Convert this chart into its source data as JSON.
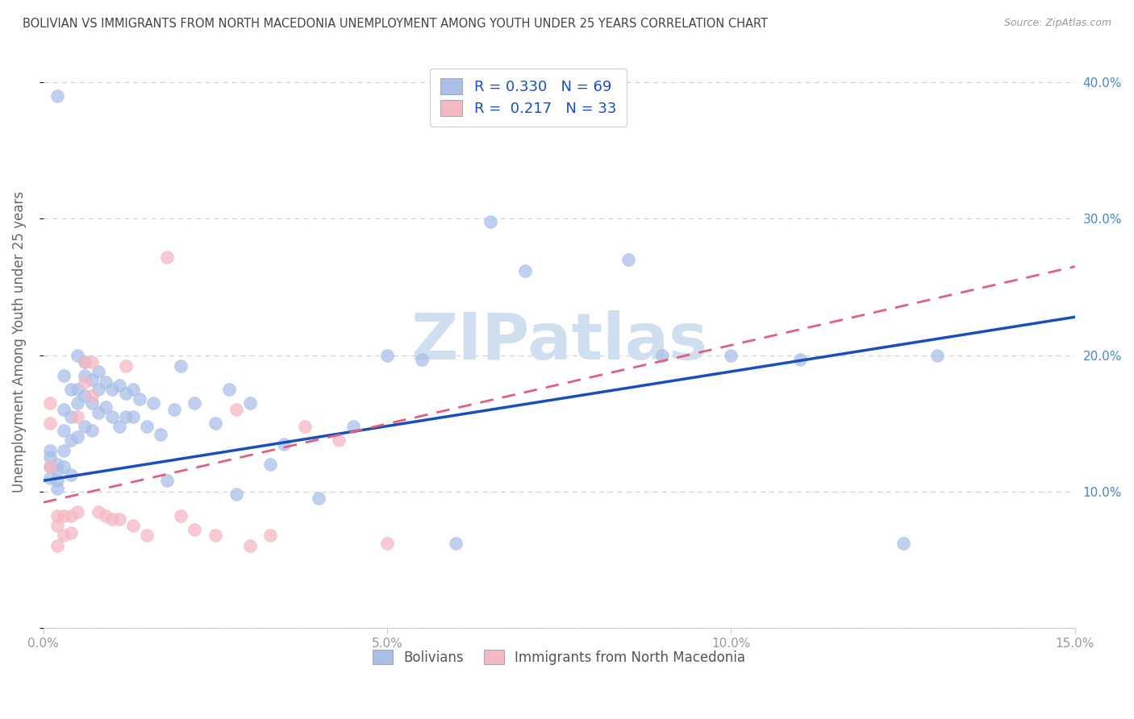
{
  "title": "BOLIVIAN VS IMMIGRANTS FROM NORTH MACEDONIA UNEMPLOYMENT AMONG YOUTH UNDER 25 YEARS CORRELATION CHART",
  "source": "Source: ZipAtlas.com",
  "ylabel": "Unemployment Among Youth under 25 years",
  "xlim": [
    0.0,
    0.15
  ],
  "ylim": [
    0.0,
    0.42
  ],
  "yticks": [
    0.0,
    0.1,
    0.2,
    0.3,
    0.4
  ],
  "xticks": [
    0.0,
    0.05,
    0.1,
    0.15
  ],
  "bolivians_R": 0.33,
  "bolivians_N": 69,
  "macedonia_R": 0.217,
  "macedonia_N": 33,
  "blue_dot_color": "#AABFE8",
  "pink_dot_color": "#F5B8C4",
  "blue_line_color": "#1A4FBB",
  "pink_line_color": "#E06080",
  "watermark": "ZIPatlas",
  "watermark_color": "#D0DFF0",
  "background_color": "#FFFFFF",
  "grid_color": "#CCCCCC",
  "title_color": "#444444",
  "right_ytick_color": "#4488CC",
  "tick_color": "#999999",
  "blue_trend_x0": 0.0,
  "blue_trend_y0": 0.108,
  "blue_trend_x1": 0.15,
  "blue_trend_y1": 0.228,
  "pink_trend_x0": 0.0,
  "pink_trend_y0": 0.092,
  "pink_trend_x1": 0.15,
  "pink_trend_y1": 0.265,
  "bolivians_x": [
    0.001,
    0.001,
    0.001,
    0.001,
    0.002,
    0.002,
    0.002,
    0.002,
    0.002,
    0.003,
    0.003,
    0.003,
    0.003,
    0.003,
    0.004,
    0.004,
    0.004,
    0.004,
    0.005,
    0.005,
    0.005,
    0.005,
    0.006,
    0.006,
    0.006,
    0.006,
    0.007,
    0.007,
    0.007,
    0.008,
    0.008,
    0.008,
    0.009,
    0.009,
    0.01,
    0.01,
    0.011,
    0.011,
    0.012,
    0.012,
    0.013,
    0.013,
    0.014,
    0.015,
    0.016,
    0.017,
    0.018,
    0.019,
    0.02,
    0.022,
    0.025,
    0.027,
    0.028,
    0.03,
    0.033,
    0.035,
    0.04,
    0.045,
    0.05,
    0.055,
    0.06,
    0.065,
    0.07,
    0.085,
    0.09,
    0.1,
    0.11,
    0.125,
    0.13
  ],
  "bolivians_y": [
    0.125,
    0.13,
    0.118,
    0.11,
    0.39,
    0.12,
    0.115,
    0.108,
    0.102,
    0.185,
    0.16,
    0.145,
    0.13,
    0.118,
    0.175,
    0.155,
    0.138,
    0.112,
    0.2,
    0.175,
    0.165,
    0.14,
    0.195,
    0.185,
    0.17,
    0.148,
    0.182,
    0.165,
    0.145,
    0.188,
    0.175,
    0.158,
    0.18,
    0.162,
    0.175,
    0.155,
    0.178,
    0.148,
    0.172,
    0.155,
    0.175,
    0.155,
    0.168,
    0.148,
    0.165,
    0.142,
    0.108,
    0.16,
    0.192,
    0.165,
    0.15,
    0.175,
    0.098,
    0.165,
    0.12,
    0.135,
    0.095,
    0.148,
    0.2,
    0.197,
    0.062,
    0.298,
    0.262,
    0.27,
    0.2,
    0.2,
    0.197,
    0.062,
    0.2
  ],
  "macedonia_x": [
    0.001,
    0.001,
    0.001,
    0.002,
    0.002,
    0.002,
    0.003,
    0.003,
    0.004,
    0.004,
    0.005,
    0.005,
    0.006,
    0.006,
    0.007,
    0.007,
    0.008,
    0.009,
    0.01,
    0.011,
    0.012,
    0.013,
    0.015,
    0.018,
    0.02,
    0.022,
    0.025,
    0.028,
    0.03,
    0.033,
    0.038,
    0.043,
    0.05
  ],
  "macedonia_y": [
    0.165,
    0.15,
    0.118,
    0.082,
    0.075,
    0.06,
    0.082,
    0.068,
    0.082,
    0.07,
    0.155,
    0.085,
    0.195,
    0.18,
    0.195,
    0.17,
    0.085,
    0.082,
    0.08,
    0.08,
    0.192,
    0.075,
    0.068,
    0.272,
    0.082,
    0.072,
    0.068,
    0.16,
    0.06,
    0.068,
    0.148,
    0.138,
    0.062
  ]
}
